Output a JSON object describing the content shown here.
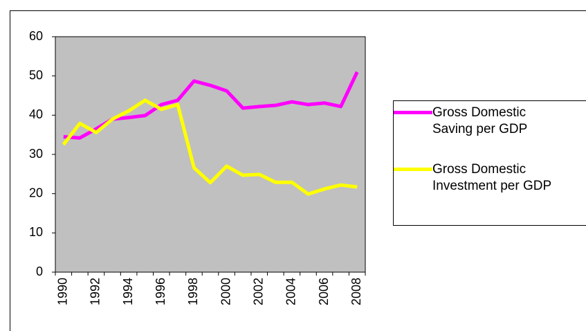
{
  "chart_data": {
    "type": "line",
    "categories": [
      "1990",
      null,
      "1992",
      null,
      "1994",
      null,
      "1996",
      null,
      "1998",
      null,
      "2000",
      null,
      "2002",
      null,
      "2004",
      null,
      "2006",
      null,
      "2008"
    ],
    "series": [
      {
        "name": "Gross Domestic Saving per GDP",
        "color": "#ff00ff",
        "values": [
          34.5,
          34.2,
          36.5,
          39,
          39.4,
          39.9,
          42.7,
          43.8,
          48.7,
          47.6,
          46.2,
          41.8,
          42.2,
          42.5,
          43.4,
          42.7,
          43.1,
          42.2,
          51
        ]
      },
      {
        "name": "Gross Domestic Investment per GDP",
        "color": "#ffff00",
        "values": [
          32.5,
          37.9,
          35.6,
          39,
          41.1,
          43.8,
          41.5,
          42.7,
          26.6,
          22.8,
          27,
          24.7,
          24.9,
          22.9,
          22.9,
          19.9,
          21.2,
          22.2,
          21.7
        ]
      }
    ],
    "ylim": [
      0,
      60
    ],
    "yticks": [
      0,
      10,
      20,
      30,
      40,
      50,
      60
    ],
    "legend": "right"
  }
}
